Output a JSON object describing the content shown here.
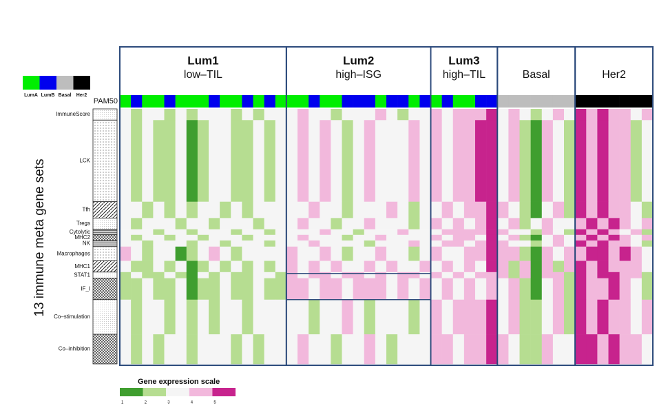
{
  "chart_data": {
    "type": "heatmap",
    "y_label": "13 immune meta gene sets",
    "pam50_label": "PAM50",
    "gene_sets": [
      "ImmuneScore",
      "LCK",
      "Tfh",
      "Tregs",
      "Cytolytic",
      "MHC2",
      "NK",
      "Macrophages",
      "MHC1",
      "STAT1",
      "IF_I",
      "Co–stimulation",
      "Co–inhibition"
    ],
    "subtypes": [
      {
        "name": "LumA",
        "color": "#00ee00"
      },
      {
        "name": "LumB",
        "color": "#0000ee"
      },
      {
        "name": "Basal",
        "color": "#bdbdbd"
      },
      {
        "name": "Her2",
        "color": "#000000"
      }
    ],
    "scale_title": "Gene expression scale",
    "scale_ticks": [
      1,
      2,
      3,
      4,
      5
    ],
    "scale_colors": [
      "#3f9e2f",
      "#b6dd91",
      "#f5f5f5",
      "#f2b8dc",
      "#c7238d"
    ],
    "clusters": [
      {
        "name": "Lum1",
        "subtitle": "low–TIL",
        "pam50": [
          0,
          1,
          0,
          0,
          1,
          0,
          0,
          0,
          1,
          0,
          0,
          1,
          0,
          1,
          0
        ],
        "values": [
          [
            3,
            2,
            3,
            3,
            2,
            3,
            2,
            3,
            3,
            3,
            2,
            3,
            2,
            3,
            3
          ],
          [
            3,
            2,
            3,
            2,
            2,
            3,
            1,
            2,
            3,
            3,
            2,
            2,
            3,
            2,
            3
          ],
          [
            3,
            3,
            2,
            3,
            2,
            3,
            2,
            3,
            3,
            2,
            3,
            2,
            3,
            3,
            3
          ],
          [
            3,
            2,
            3,
            3,
            3,
            2,
            3,
            3,
            2,
            3,
            3,
            3,
            2,
            3,
            3
          ],
          [
            3,
            3,
            3,
            2,
            3,
            3,
            2,
            3,
            3,
            3,
            2,
            3,
            3,
            2,
            3
          ],
          [
            3,
            2,
            3,
            3,
            2,
            3,
            3,
            2,
            3,
            3,
            3,
            2,
            3,
            3,
            3
          ],
          [
            3,
            3,
            2,
            3,
            3,
            3,
            2,
            3,
            3,
            2,
            3,
            3,
            3,
            2,
            3
          ],
          [
            4,
            3,
            2,
            3,
            3,
            1,
            2,
            3,
            4,
            3,
            2,
            3,
            3,
            3,
            3
          ],
          [
            3,
            2,
            2,
            3,
            2,
            3,
            1,
            2,
            3,
            2,
            3,
            2,
            3,
            2,
            3
          ],
          [
            2,
            3,
            2,
            2,
            3,
            2,
            1,
            3,
            2,
            3,
            2,
            2,
            3,
            3,
            2
          ],
          [
            2,
            2,
            3,
            2,
            2,
            3,
            1,
            2,
            2,
            3,
            2,
            2,
            3,
            2,
            2
          ],
          [
            3,
            2,
            3,
            3,
            2,
            3,
            2,
            3,
            2,
            3,
            3,
            2,
            3,
            3,
            3
          ],
          [
            3,
            2,
            3,
            2,
            3,
            3,
            2,
            3,
            3,
            3,
            2,
            3,
            2,
            3,
            3
          ]
        ]
      },
      {
        "name": "Lum2",
        "subtitle": "high–ISG",
        "pam50": [
          0,
          0,
          1,
          0,
          0,
          1,
          1,
          1,
          0,
          1,
          1,
          0,
          1
        ],
        "values": [
          [
            3,
            4,
            3,
            3,
            2,
            3,
            3,
            3,
            4,
            3,
            2,
            3,
            3
          ],
          [
            3,
            4,
            3,
            4,
            3,
            2,
            3,
            4,
            3,
            3,
            3,
            4,
            3
          ],
          [
            3,
            3,
            4,
            3,
            3,
            2,
            3,
            3,
            3,
            4,
            3,
            2,
            3
          ],
          [
            3,
            4,
            3,
            3,
            2,
            3,
            3,
            4,
            3,
            3,
            3,
            2,
            3
          ],
          [
            3,
            3,
            3,
            4,
            3,
            3,
            2,
            3,
            3,
            3,
            4,
            3,
            3
          ],
          [
            3,
            4,
            3,
            3,
            3,
            2,
            3,
            3,
            4,
            3,
            3,
            3,
            3
          ],
          [
            3,
            3,
            4,
            3,
            3,
            3,
            3,
            2,
            3,
            3,
            3,
            4,
            3
          ],
          [
            4,
            3,
            3,
            4,
            3,
            2,
            3,
            3,
            4,
            3,
            3,
            2,
            3
          ],
          [
            4,
            3,
            4,
            3,
            4,
            3,
            3,
            4,
            3,
            4,
            3,
            3,
            4
          ],
          [
            4,
            3,
            4,
            4,
            3,
            4,
            4,
            3,
            4,
            3,
            4,
            4,
            3
          ],
          [
            4,
            4,
            3,
            4,
            4,
            3,
            4,
            4,
            4,
            3,
            4,
            3,
            4
          ],
          [
            3,
            3,
            2,
            3,
            3,
            4,
            3,
            2,
            3,
            3,
            3,
            2,
            3
          ],
          [
            3,
            4,
            3,
            3,
            2,
            3,
            3,
            4,
            3,
            2,
            3,
            3,
            3
          ]
        ]
      },
      {
        "name": "Lum3",
        "subtitle": "high–TIL",
        "pam50": [
          0,
          1,
          0,
          0,
          1,
          1
        ],
        "values": [
          [
            4,
            3,
            4,
            4,
            4,
            5
          ],
          [
            4,
            3,
            4,
            4,
            5,
            5
          ],
          [
            3,
            4,
            3,
            4,
            4,
            5
          ],
          [
            4,
            3,
            4,
            3,
            4,
            5
          ],
          [
            3,
            4,
            4,
            4,
            4,
            5
          ],
          [
            4,
            3,
            4,
            4,
            3,
            5
          ],
          [
            3,
            4,
            4,
            3,
            4,
            5
          ],
          [
            4,
            3,
            3,
            4,
            4,
            5
          ],
          [
            3,
            4,
            3,
            4,
            3,
            5
          ],
          [
            4,
            3,
            4,
            3,
            4,
            4
          ],
          [
            3,
            4,
            3,
            4,
            3,
            4
          ],
          [
            4,
            3,
            4,
            4,
            4,
            5
          ],
          [
            4,
            4,
            3,
            4,
            4,
            5
          ]
        ]
      },
      {
        "name": "Basal",
        "pam50": [
          2,
          2,
          2,
          2,
          2,
          2,
          2
        ],
        "values": [
          [
            3,
            4,
            3,
            2,
            3,
            4,
            3
          ],
          [
            3,
            4,
            2,
            1,
            4,
            3,
            2
          ],
          [
            4,
            3,
            2,
            1,
            3,
            4,
            2
          ],
          [
            3,
            4,
            2,
            3,
            4,
            3,
            3
          ],
          [
            4,
            3,
            3,
            2,
            4,
            3,
            2
          ],
          [
            3,
            4,
            2,
            1,
            3,
            4,
            3
          ],
          [
            4,
            3,
            3,
            2,
            3,
            4,
            3
          ],
          [
            4,
            4,
            2,
            1,
            4,
            3,
            4
          ],
          [
            4,
            2,
            4,
            1,
            4,
            2,
            4
          ],
          [
            4,
            2,
            4,
            1,
            4,
            4,
            2
          ],
          [
            3,
            4,
            2,
            1,
            3,
            4,
            2
          ],
          [
            3,
            4,
            2,
            2,
            3,
            4,
            2
          ],
          [
            4,
            3,
            2,
            2,
            4,
            3,
            3
          ]
        ]
      },
      {
        "name": "Her2",
        "pam50": [
          3,
          3,
          3,
          3,
          3,
          3,
          3
        ],
        "values": [
          [
            5,
            4,
            5,
            4,
            4,
            3,
            4
          ],
          [
            5,
            4,
            5,
            4,
            4,
            2,
            3
          ],
          [
            5,
            4,
            5,
            4,
            4,
            3,
            2
          ],
          [
            4,
            5,
            4,
            5,
            4,
            3,
            4
          ],
          [
            5,
            4,
            5,
            4,
            3,
            4,
            2
          ],
          [
            4,
            5,
            4,
            5,
            4,
            3,
            4
          ],
          [
            5,
            4,
            5,
            4,
            4,
            3,
            2
          ],
          [
            4,
            5,
            5,
            4,
            5,
            4,
            3
          ],
          [
            5,
            4,
            5,
            4,
            4,
            4,
            3
          ],
          [
            5,
            4,
            5,
            5,
            4,
            4,
            2
          ],
          [
            5,
            4,
            4,
            5,
            4,
            3,
            2
          ],
          [
            5,
            4,
            5,
            4,
            4,
            3,
            4
          ],
          [
            5,
            5,
            4,
            5,
            4,
            4,
            3
          ]
        ]
      }
    ]
  }
}
